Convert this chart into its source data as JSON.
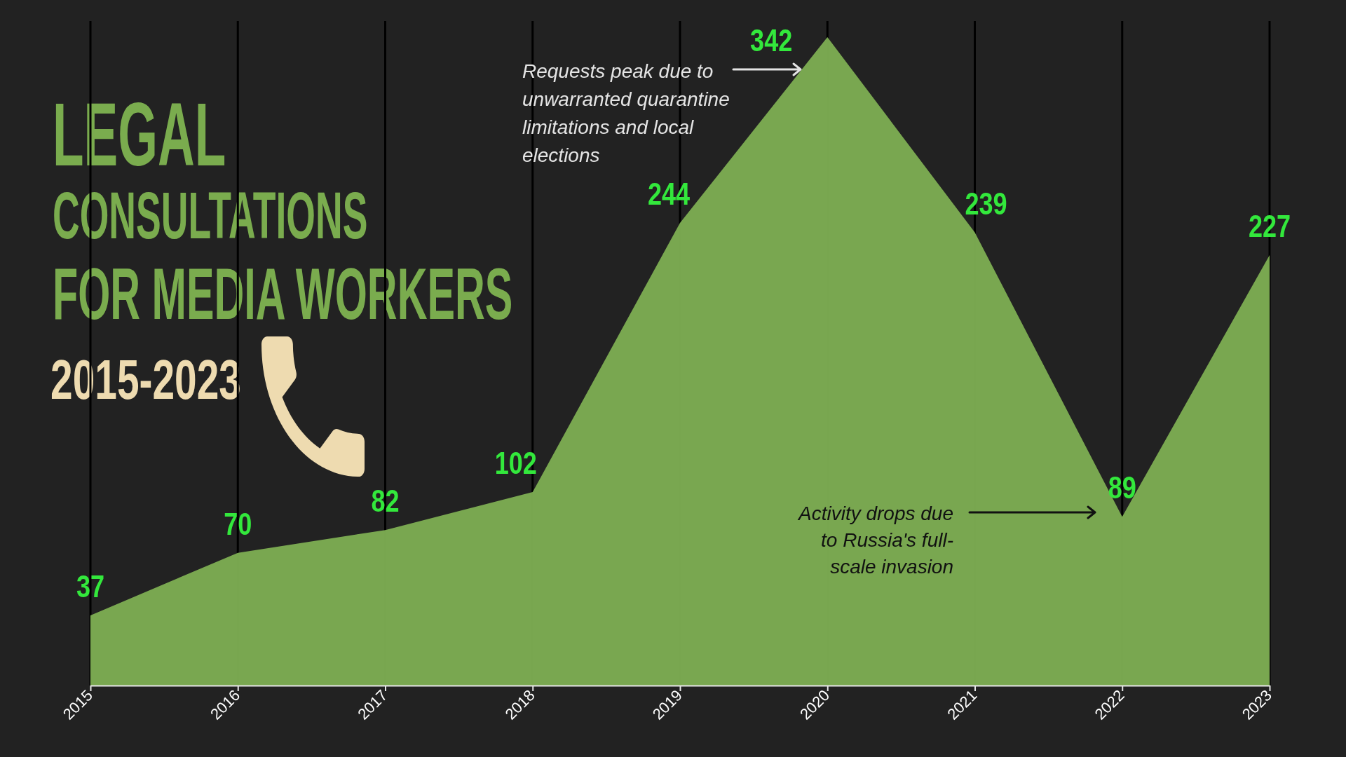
{
  "chart_data": {
    "type": "area",
    "title": "LEGAL CONSULTATIONS FOR MEDIA WORKERS",
    "subtitle": "2015-2023",
    "categories": [
      "2015",
      "2016",
      "2017",
      "2018",
      "2019",
      "2020",
      "2021",
      "2022",
      "2023"
    ],
    "values": [
      37,
      70,
      82,
      102,
      244,
      342,
      239,
      89,
      227
    ],
    "color": "#7dad52",
    "data_labels": true,
    "grid": "x",
    "annotations": [
      "Requests peak due to unwarranted quarantine limitations and local elections",
      "Activity drops due to Russia's full-scale invasion"
    ]
  }
}
